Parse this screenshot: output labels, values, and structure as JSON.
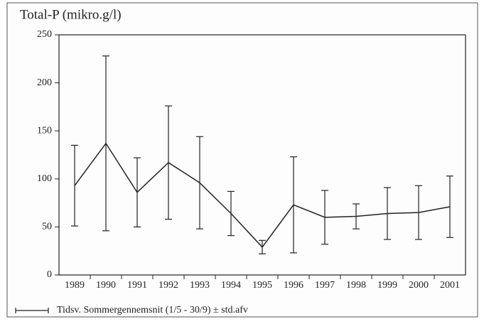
{
  "chart_data": {
    "type": "line",
    "title": "Total-P (mikro.g/l)",
    "categories": [
      "1989",
      "1990",
      "1991",
      "1992",
      "1993",
      "1994",
      "1995",
      "1996",
      "1997",
      "1998",
      "1999",
      "2000",
      "2001"
    ],
    "series": [
      {
        "name": "Tidsv. Sommergennemsnit (1/5 - 30/9) ± std.afv",
        "color": "#222222",
        "values": [
          93,
          137,
          86,
          117,
          96,
          64,
          29,
          73,
          60,
          61,
          64,
          65,
          71
        ],
        "errors": [
          42,
          91,
          36,
          59,
          48,
          23,
          7,
          50,
          28,
          13,
          27,
          28,
          32
        ]
      }
    ],
    "ylim": [
      0,
      250
    ],
    "yticks": [
      0,
      50,
      100,
      150,
      200,
      250
    ],
    "grid": false
  }
}
